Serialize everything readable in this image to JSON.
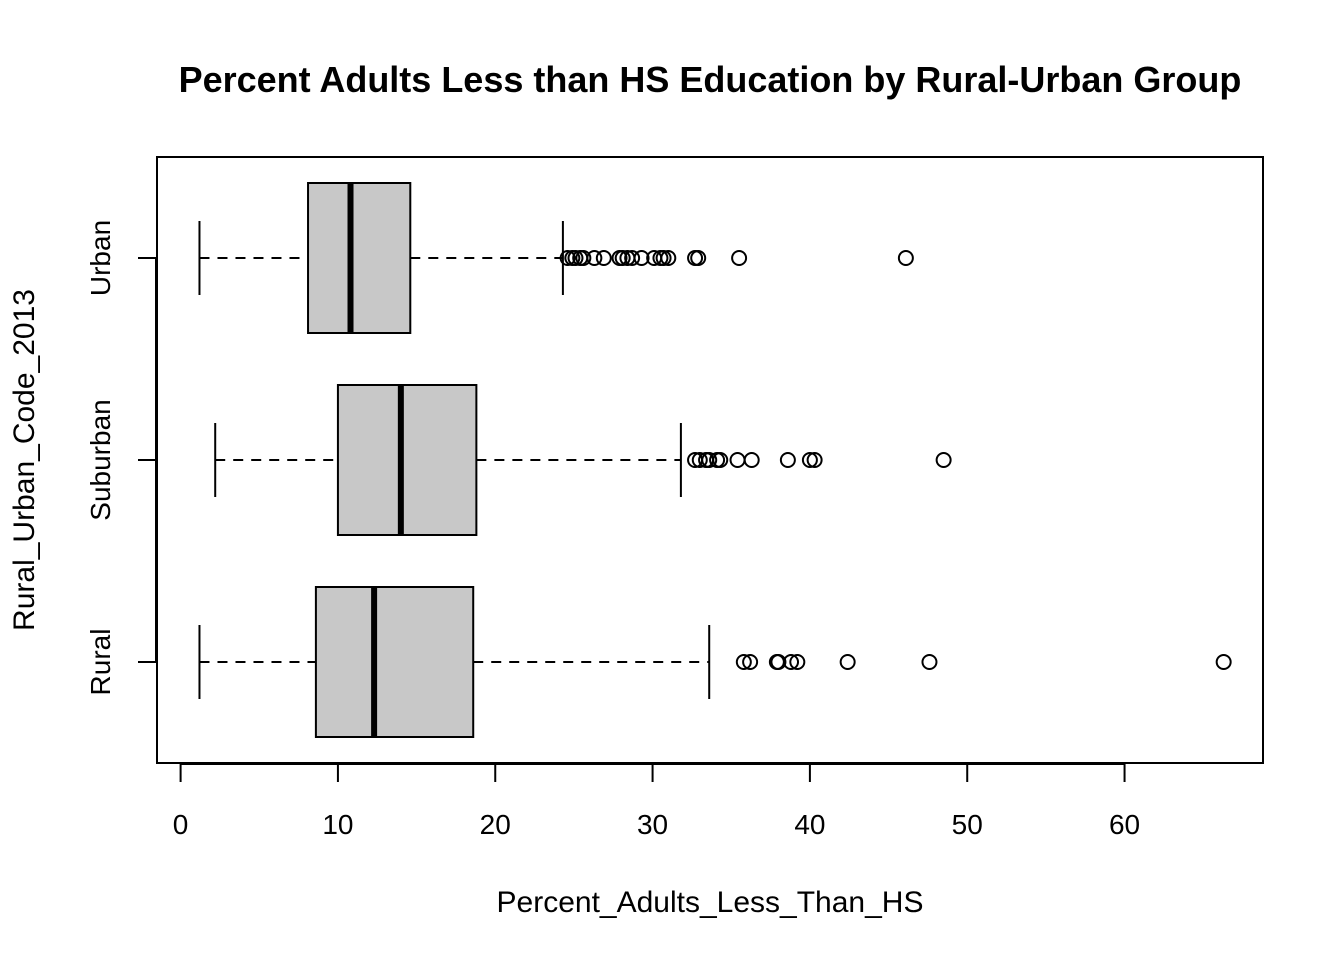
{
  "chart_data": {
    "type": "boxplot",
    "orientation": "horizontal",
    "title": "Percent Adults Less than HS Education by Rural-Urban Group",
    "xlabel": "Percent_Adults_Less_Than_HS",
    "ylabel": "Rural_Urban_Code_2013",
    "xlim": [
      -1.5,
      68.8
    ],
    "x_ticks": [
      0,
      10,
      20,
      30,
      40,
      50,
      60
    ],
    "grid": false,
    "box_fill": "#c8c8c8",
    "line_color": "#000000",
    "categories": [
      "Rural",
      "Suburban",
      "Urban"
    ],
    "groups": [
      {
        "name": "Rural",
        "whisker_low": 1.2,
        "q1": 8.6,
        "median": 12.3,
        "q3": 18.6,
        "whisker_high": 33.6,
        "outliers": [
          35.8,
          36.2,
          37.9,
          38.0,
          38.8,
          39.2,
          42.4,
          47.6,
          66.3
        ]
      },
      {
        "name": "Suburban",
        "whisker_low": 2.2,
        "q1": 10.0,
        "median": 14.0,
        "q3": 18.8,
        "whisker_high": 31.8,
        "outliers": [
          32.7,
          33.0,
          33.4,
          33.6,
          34.1,
          34.3,
          35.4,
          36.3,
          38.6,
          40.0,
          40.3,
          48.5
        ]
      },
      {
        "name": "Urban",
        "whisker_low": 1.2,
        "q1": 8.1,
        "median": 10.8,
        "q3": 14.6,
        "whisker_high": 24.3,
        "outliers": [
          24.6,
          24.9,
          25.1,
          25.4,
          25.6,
          26.3,
          26.9,
          27.9,
          28.1,
          28.4,
          28.7,
          29.3,
          30.1,
          30.5,
          30.7,
          31.0,
          32.7,
          32.9,
          35.5,
          46.1
        ]
      }
    ]
  }
}
